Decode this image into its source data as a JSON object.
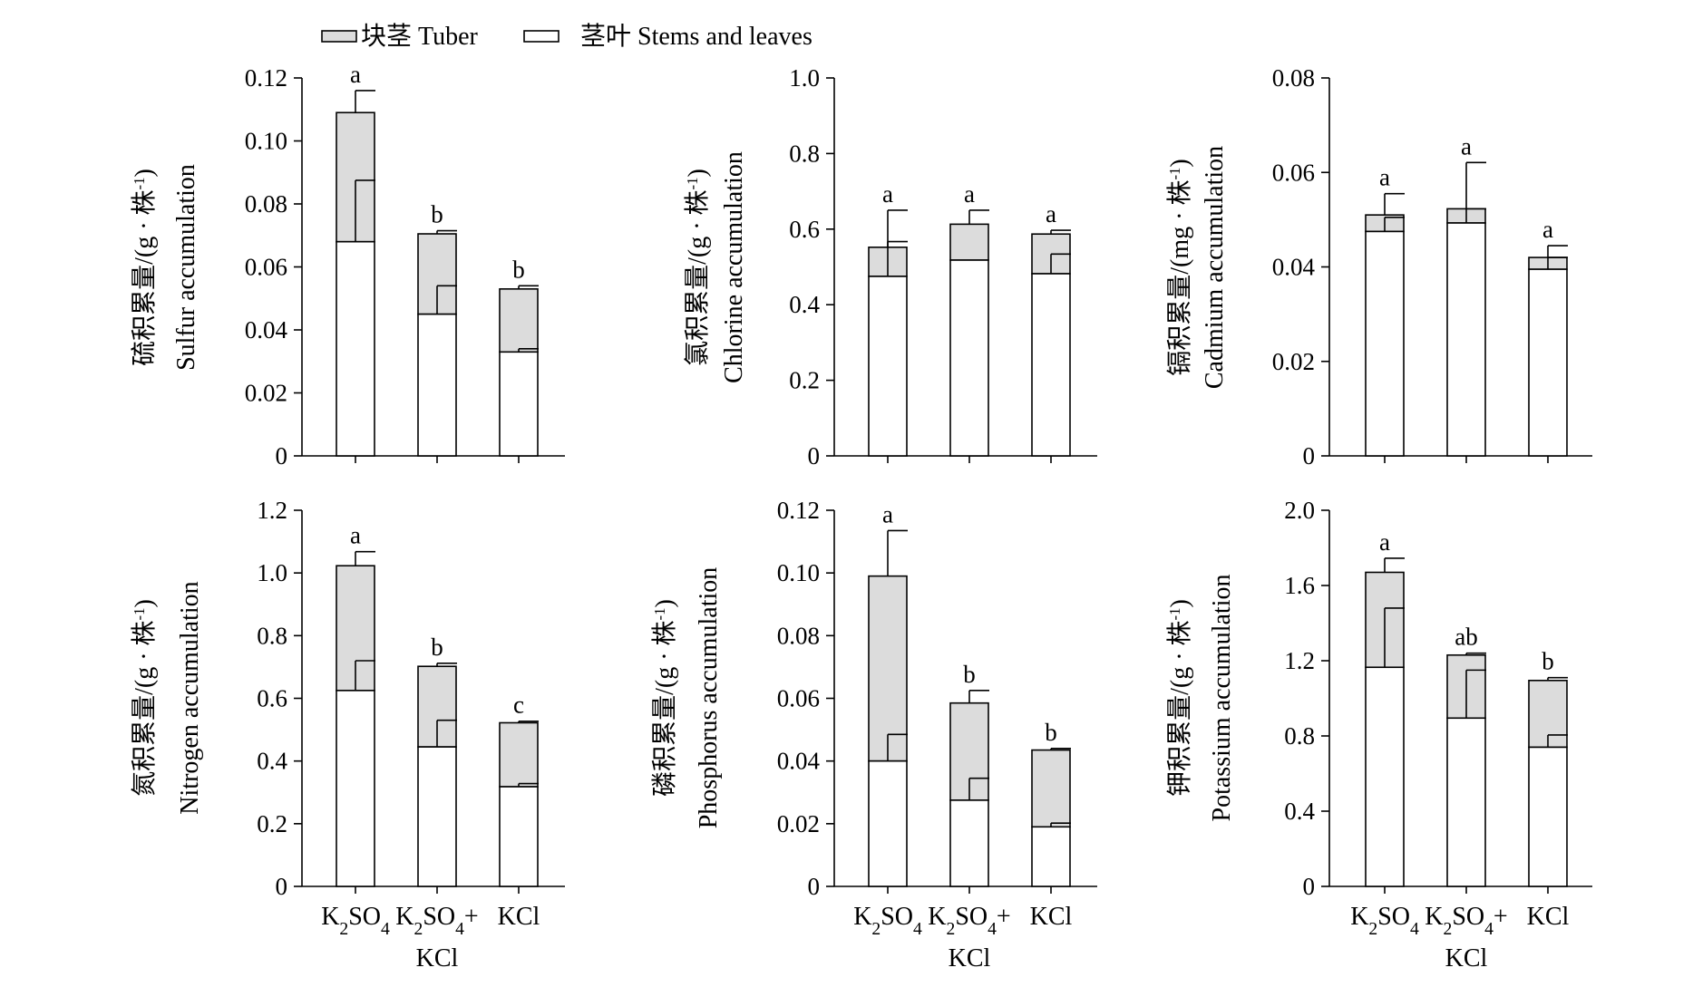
{
  "legend": {
    "items": [
      {
        "label": "块茎 Tuber",
        "fill": "#dcdcdc"
      },
      {
        "label": "茎叶 Stems and leaves",
        "fill": "#ffffff"
      }
    ],
    "placement": "top-left"
  },
  "x_group": {
    "categories": [
      "K2SO4",
      "K2SO4+KCl",
      "KCl"
    ]
  },
  "chart_data": [
    {
      "type": "bar",
      "stacked": true,
      "ylabel_cn": "硫积累量/(g · 株-1)",
      "ylabel_en": "Sulfur accumulation",
      "ylim": [
        0,
        0.12
      ],
      "yticks": [
        0,
        0.02,
        0.04,
        0.06,
        0.08,
        0.1,
        0.12
      ],
      "yticklabels": [
        "0",
        "0.02",
        "0.04",
        "0.06",
        "0.08",
        "0.10",
        "0.12"
      ],
      "categories": [
        "K2SO4",
        "K2SO4+KCl",
        "KCl"
      ],
      "series": [
        {
          "name": "茎叶 Stems and leaves",
          "values": [
            0.068,
            0.045,
            0.033
          ],
          "errors": [
            0.0195,
            0.009,
            0.001
          ]
        },
        {
          "name": "块茎 Tuber",
          "values": [
            0.041,
            0.0255,
            0.02
          ],
          "errors": [
            0.007,
            0.001,
            0.001
          ]
        }
      ],
      "significance": [
        "a",
        "b",
        "b"
      ]
    },
    {
      "type": "bar",
      "stacked": true,
      "ylabel_cn": "氯积累量/(g · 株-1)",
      "ylabel_en": "Chlorine accumulation",
      "ylim": [
        0,
        1.0
      ],
      "yticks": [
        0,
        0.2,
        0.4,
        0.6,
        0.8,
        1.0
      ],
      "yticklabels": [
        "0",
        "0.2",
        "0.4",
        "0.6",
        "0.8",
        "1.0"
      ],
      "categories": [
        "K2SO4",
        "K2SO4+KCl",
        "KCl"
      ],
      "series": [
        {
          "name": "茎叶 Stems and leaves",
          "values": [
            0.475,
            0.518,
            0.482
          ],
          "errors": [
            0.092,
            0,
            0.052
          ]
        },
        {
          "name": "块茎 Tuber",
          "values": [
            0.077,
            0.095,
            0.105
          ],
          "errors": [
            0.098,
            0.037,
            0.01
          ]
        }
      ],
      "significance": [
        "a",
        "a",
        "a"
      ]
    },
    {
      "type": "bar",
      "stacked": true,
      "ylabel_cn": "镉积累量/(mg · 株-1)",
      "ylabel_en": "Cadmium accumulation",
      "ylim": [
        0,
        0.08
      ],
      "yticks": [
        0,
        0.02,
        0.04,
        0.06,
        0.08
      ],
      "yticklabels": [
        "0",
        "0.02",
        "0.04",
        "0.06",
        "0.08"
      ],
      "categories": [
        "K2SO4",
        "K2SO4+KCl",
        "KCl"
      ],
      "series": [
        {
          "name": "茎叶 Stems and leaves",
          "values": [
            0.0475,
            0.0493,
            0.0395
          ],
          "errors": [
            0.003,
            0.003,
            0.0025
          ]
        },
        {
          "name": "块茎 Tuber",
          "values": [
            0.0035,
            0.003,
            0.0025
          ],
          "errors": [
            0.0045,
            0.0098,
            0.0025
          ]
        }
      ],
      "significance": [
        "a",
        "a",
        "a"
      ]
    },
    {
      "type": "bar",
      "stacked": true,
      "ylabel_cn": "氮积累量/(g · 株-1)",
      "ylabel_en": "Nitrogen accumulation",
      "ylim": [
        0,
        1.2
      ],
      "yticks": [
        0,
        0.2,
        0.4,
        0.6,
        0.8,
        1.0,
        1.2
      ],
      "yticklabels": [
        "0",
        "0.2",
        "0.4",
        "0.6",
        "0.8",
        "1.0",
        "1.2"
      ],
      "categories": [
        "K2SO4",
        "K2SO4+KCl",
        "KCl"
      ],
      "series": [
        {
          "name": "茎叶 Stems and leaves",
          "values": [
            0.625,
            0.445,
            0.318
          ],
          "errors": [
            0.095,
            0.085,
            0.01
          ]
        },
        {
          "name": "块茎 Tuber",
          "values": [
            0.398,
            0.257,
            0.204
          ],
          "errors": [
            0.045,
            0.01,
            0.005
          ]
        }
      ],
      "significance": [
        "a",
        "b",
        "c"
      ]
    },
    {
      "type": "bar",
      "stacked": true,
      "ylabel_cn": "磷积累量/(g · 株-1)",
      "ylabel_en": "Phosphorus accumulation",
      "ylim": [
        0,
        0.12
      ],
      "yticks": [
        0,
        0.02,
        0.04,
        0.06,
        0.08,
        0.1,
        0.12
      ],
      "yticklabels": [
        "0",
        "0.02",
        "0.04",
        "0.06",
        "0.08",
        "0.10",
        "0.12"
      ],
      "categories": [
        "K2SO4",
        "K2SO4+KCl",
        "KCl"
      ],
      "series": [
        {
          "name": "茎叶 Stems and leaves",
          "values": [
            0.04,
            0.0275,
            0.019
          ],
          "errors": [
            0.0085,
            0.007,
            0.0012
          ]
        },
        {
          "name": "块茎 Tuber",
          "values": [
            0.059,
            0.031,
            0.0245
          ],
          "errors": [
            0.0145,
            0.004,
            0.0005
          ]
        }
      ],
      "significance": [
        "a",
        "b",
        "b"
      ]
    },
    {
      "type": "bar",
      "stacked": true,
      "ylabel_cn": "钾积累量/(g · 株-1)",
      "ylabel_en": "Potassium accumulation",
      "ylim": [
        0,
        2.0
      ],
      "yticks": [
        0,
        0.4,
        0.8,
        1.2,
        1.6,
        2.0
      ],
      "yticklabels": [
        "0",
        "0.4",
        "0.8",
        "1.2",
        "1.6",
        "2.0"
      ],
      "categories": [
        "K2SO4",
        "K2SO4+KCl",
        "KCl"
      ],
      "series": [
        {
          "name": "茎叶 Stems and leaves",
          "values": [
            1.165,
            0.895,
            0.74
          ],
          "errors": [
            0.315,
            0.255,
            0.065
          ]
        },
        {
          "name": "块茎 Tuber",
          "values": [
            0.505,
            0.335,
            0.355
          ],
          "errors": [
            0.075,
            0.01,
            0.015
          ]
        }
      ],
      "significance": [
        "a",
        "ab",
        "b"
      ]
    }
  ]
}
